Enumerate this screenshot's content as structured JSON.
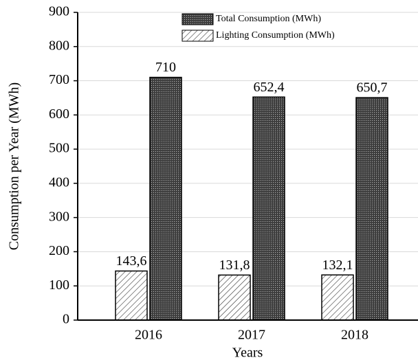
{
  "chart_data": {
    "type": "bar",
    "categories": [
      "2016",
      "2017",
      "2018"
    ],
    "series": [
      {
        "name": "Lighting Consumption (MWh)",
        "color": "#333333",
        "pattern": "hatch",
        "values": [
          143.6,
          131.8,
          132.1
        ],
        "value_labels": [
          "143,6",
          "131,8",
          "132,1"
        ]
      },
      {
        "name": "Total Consumption (MWh)",
        "color": "#3c3c3c",
        "pattern": "dots",
        "values": [
          710,
          652.4,
          650.7
        ],
        "value_labels": [
          "710",
          "652,4",
          "650,7"
        ]
      }
    ],
    "xlabel": "Years",
    "ylabel": "Consumption per Year (MWh)",
    "ylim": [
      0,
      900
    ],
    "yticks": [
      0,
      100,
      200,
      300,
      400,
      500,
      600,
      700,
      800,
      900
    ],
    "grid": true
  }
}
